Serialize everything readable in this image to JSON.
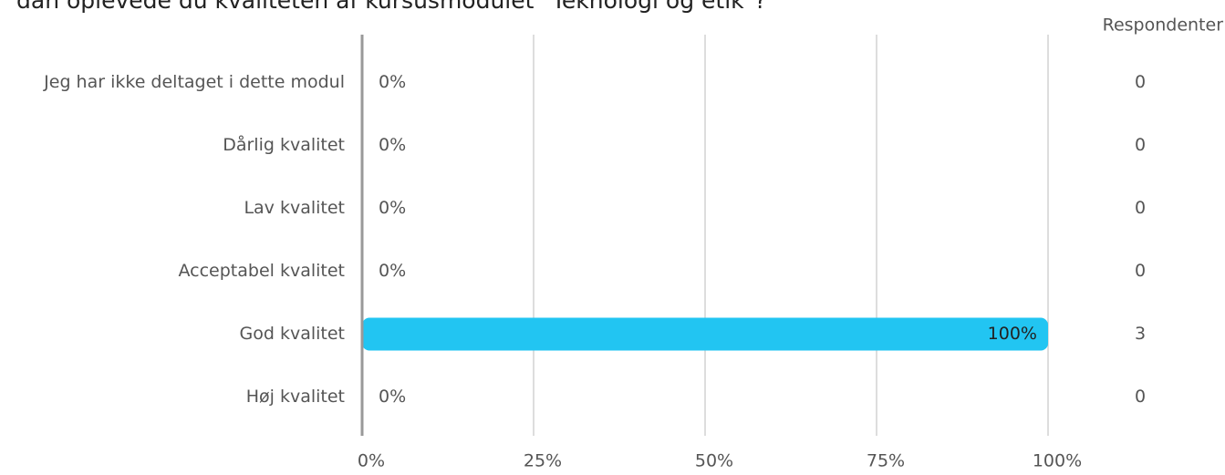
{
  "chart_data": {
    "type": "bar",
    "orientation": "horizontal",
    "title": "dan oplevede du kvaliteten af kursusmodulet \"Teknologi og etik\"?",
    "categories": [
      "Jeg har ikke deltaget i dette modul",
      "Dårlig kvalitet",
      "Lav kvalitet",
      "Acceptabel kvalitet",
      "God kvalitet",
      "Høj kvalitet"
    ],
    "values": [
      0,
      0,
      0,
      0,
      100,
      0
    ],
    "value_labels": [
      "0%",
      "0%",
      "0%",
      "0%",
      "100%",
      "0%"
    ],
    "color": "#22c5f2",
    "xlim": [
      0,
      100
    ],
    "xticks": [
      {
        "value": 0,
        "label": "0%"
      },
      {
        "value": 25,
        "label": "25%"
      },
      {
        "value": 50,
        "label": "50%"
      },
      {
        "value": 75,
        "label": "75%"
      },
      {
        "value": 100,
        "label": "100%"
      }
    ],
    "grid": true,
    "respondents_label": "Respondenter",
    "respondents": [
      0,
      0,
      0,
      0,
      3,
      0
    ]
  }
}
